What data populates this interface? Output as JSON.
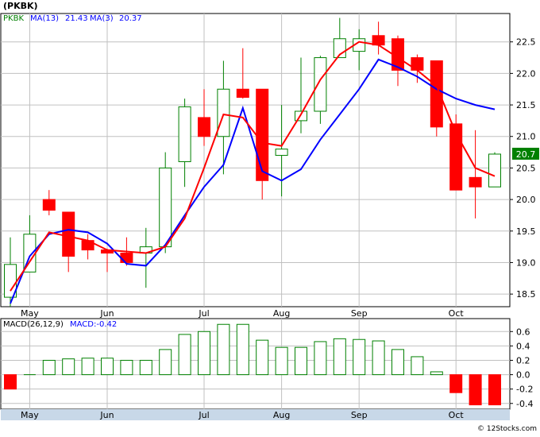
{
  "chart_data": [
    {
      "type": "candlestick",
      "symbol_label": "(PKBK)",
      "legend": {
        "ticker": "PKBK",
        "ma13_label": "MA(13)",
        "ma13_value": "21.43",
        "ma3_label": "MA(3)",
        "ma3_value": "20.37"
      },
      "last_price_label": "20.7",
      "ylim": [
        18.3,
        22.95
      ],
      "y_ticks": [
        18.5,
        19.0,
        19.5,
        20.0,
        20.5,
        21.0,
        21.5,
        22.0,
        22.5
      ],
      "y_tick_labels": [
        "18.5",
        "19.0",
        "19.5",
        "20.0",
        "20.5",
        "21.0",
        "21.5",
        "22.0",
        "22.5"
      ],
      "x_month_labels": [
        "May",
        "Jun",
        "Jul",
        "Aug",
        "Sep",
        "Oct"
      ],
      "month_index": [
        1,
        5,
        10,
        14,
        18,
        23
      ],
      "candles": [
        {
          "o": 18.45,
          "c": 18.97,
          "h": 19.4,
          "l": 18.3
        },
        {
          "o": 18.85,
          "c": 19.45,
          "h": 19.75,
          "l": 18.85
        },
        {
          "o": 20.0,
          "c": 19.83,
          "h": 20.15,
          "l": 19.75
        },
        {
          "o": 19.8,
          "c": 19.1,
          "h": 19.8,
          "l": 18.85
        },
        {
          "o": 19.35,
          "c": 19.2,
          "h": 19.45,
          "l": 19.05
        },
        {
          "o": 19.2,
          "c": 19.15,
          "h": 19.22,
          "l": 18.85
        },
        {
          "o": 19.15,
          "c": 19.0,
          "h": 19.4,
          "l": 18.95
        },
        {
          "o": 19.15,
          "c": 19.25,
          "h": 19.55,
          "l": 18.6
        },
        {
          "o": 19.25,
          "c": 20.5,
          "h": 20.75,
          "l": 19.15
        },
        {
          "o": 20.6,
          "c": 21.47,
          "h": 21.6,
          "l": 20.2
        },
        {
          "o": 21.3,
          "c": 21.0,
          "h": 21.75,
          "l": 20.85
        },
        {
          "o": 21.0,
          "c": 21.75,
          "h": 22.2,
          "l": 20.4
        },
        {
          "o": 21.75,
          "c": 21.62,
          "h": 22.4,
          "l": 21.6
        },
        {
          "o": 21.75,
          "c": 20.3,
          "h": 21.75,
          "l": 20.0
        },
        {
          "o": 20.7,
          "c": 20.8,
          "h": 21.5,
          "l": 20.05
        },
        {
          "o": 21.25,
          "c": 21.4,
          "h": 22.25,
          "l": 21.05
        },
        {
          "o": 21.4,
          "c": 22.25,
          "h": 22.28,
          "l": 21.2
        },
        {
          "o": 22.25,
          "c": 22.55,
          "h": 22.88,
          "l": 22.25
        },
        {
          "o": 22.35,
          "c": 22.55,
          "h": 22.7,
          "l": 22.05
        },
        {
          "o": 22.6,
          "c": 22.45,
          "h": 22.82,
          "l": 22.3
        },
        {
          "o": 22.55,
          "c": 22.05,
          "h": 22.6,
          "l": 21.8
        },
        {
          "o": 22.25,
          "c": 22.05,
          "h": 22.3,
          "l": 21.85
        },
        {
          "o": 22.2,
          "c": 21.15,
          "h": 22.2,
          "l": 21.0
        },
        {
          "o": 21.2,
          "c": 20.15,
          "h": 21.35,
          "l": 20.15
        },
        {
          "o": 20.35,
          "c": 20.2,
          "h": 21.1,
          "l": 19.7
        },
        {
          "o": 20.2,
          "c": 20.72,
          "h": 20.75,
          "l": 20.2
        }
      ],
      "series": [
        {
          "label": "MA(3)",
          "color": "#ff0000",
          "x_index": [
            0,
            2,
            4,
            5,
            7,
            8,
            9,
            10,
            11,
            12,
            13,
            14,
            15,
            16,
            17,
            18,
            19,
            20,
            21,
            22,
            23,
            24,
            25
          ],
          "values": [
            18.55,
            19.48,
            19.35,
            19.2,
            19.15,
            19.25,
            19.7,
            20.5,
            21.35,
            21.3,
            20.9,
            20.85,
            21.35,
            21.9,
            22.3,
            22.5,
            22.45,
            22.25,
            22.05,
            21.8,
            21.05,
            20.5,
            20.37
          ]
        },
        {
          "label": "MA(13)",
          "color": "#0000ff",
          "x_index": [
            0,
            1,
            2,
            3,
            4,
            5,
            6,
            7,
            8,
            9,
            10,
            11,
            12,
            13,
            14,
            15,
            16,
            17,
            18,
            19,
            20,
            21,
            22,
            23,
            24,
            25
          ],
          "values": [
            18.35,
            19.1,
            19.45,
            19.52,
            19.48,
            19.3,
            18.98,
            18.95,
            19.28,
            19.75,
            20.2,
            20.55,
            21.45,
            20.45,
            20.3,
            20.48,
            20.95,
            21.35,
            21.75,
            22.22,
            22.1,
            21.95,
            21.75,
            21.6,
            21.5,
            21.43
          ]
        }
      ]
    },
    {
      "type": "bar",
      "title": "MACD(26,12,9)",
      "macd_label": "MACD:-0.42",
      "ylim": [
        -0.48,
        0.78
      ],
      "y_ticks": [
        -0.4,
        -0.2,
        0.0,
        0.2,
        0.4,
        0.6
      ],
      "y_tick_labels": [
        "-0.4",
        "-0.2",
        "0.0",
        "0.2",
        "0.4",
        "0.6"
      ],
      "x_month_labels": [
        "May",
        "Jun",
        "Jul",
        "Aug",
        "Sep",
        "Oct"
      ],
      "values": [
        -0.2,
        0.0,
        0.2,
        0.22,
        0.23,
        0.23,
        0.2,
        0.2,
        0.35,
        0.56,
        0.6,
        0.7,
        0.7,
        0.48,
        0.38,
        0.38,
        0.46,
        0.5,
        0.49,
        0.47,
        0.35,
        0.25,
        0.04,
        -0.25,
        -0.42,
        -0.42
      ]
    }
  ],
  "watermark": "© 12Stocks.com",
  "colors": {
    "up": "#008000",
    "down": "#ff0000",
    "grid": "#c0c0c0",
    "axis_text": "#000000",
    "legend_text": "#0000ff"
  }
}
